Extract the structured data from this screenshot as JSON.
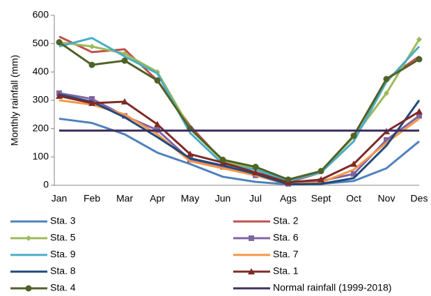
{
  "chart_data": {
    "type": "line",
    "y_label": "Monthly rainfall (mm)",
    "categories": [
      "Jan",
      "Feb",
      "Mar",
      "Apr",
      "May",
      "Jun",
      "Jul",
      "Ags",
      "Sept",
      "Oct",
      "Nov",
      "Des"
    ],
    "ylim": [
      0,
      600
    ],
    "yticks": [
      0,
      100,
      200,
      300,
      400,
      500,
      600
    ],
    "grid": false,
    "series": [
      {
        "name": "Sta. 3",
        "color": "#4f81bd",
        "marker": "none",
        "values": [
          235,
          220,
          180,
          115,
          75,
          30,
          12,
          3,
          5,
          15,
          60,
          155
        ]
      },
      {
        "name": "Sta. 2",
        "color": "#c0504d",
        "marker": "none",
        "values": [
          525,
          470,
          480,
          370,
          210,
          85,
          55,
          10,
          45,
          175,
          375,
          455
        ]
      },
      {
        "name": "Sta. 5",
        "color": "#9bbb59",
        "marker": "diamond",
        "values": [
          505,
          490,
          465,
          400,
          200,
          85,
          60,
          20,
          50,
          170,
          325,
          515
        ]
      },
      {
        "name": "Sta. 6",
        "color": "#8064a2",
        "marker": "square",
        "values": [
          325,
          305,
          245,
          195,
          90,
          65,
          35,
          5,
          15,
          40,
          160,
          245
        ]
      },
      {
        "name": "Sta. 9",
        "color": "#4bacc6",
        "marker": "none",
        "values": [
          490,
          520,
          455,
          395,
          185,
          75,
          55,
          15,
          45,
          155,
          365,
          490
        ]
      },
      {
        "name": "Sta. 7",
        "color": "#f79646",
        "marker": "none",
        "values": [
          300,
          285,
          250,
          180,
          85,
          60,
          35,
          3,
          10,
          55,
          150,
          235
        ]
      },
      {
        "name": "Sta. 8",
        "color": "#1f497d",
        "marker": "none",
        "values": [
          320,
          295,
          240,
          170,
          95,
          70,
          40,
          3,
          5,
          25,
          140,
          300
        ]
      },
      {
        "name": "Sta. 1",
        "color": "#7f2a25",
        "marker": "triangle",
        "values": [
          315,
          290,
          295,
          215,
          110,
          80,
          45,
          10,
          20,
          75,
          190,
          260
        ]
      },
      {
        "name": "Sta. 4",
        "color": "#4f6228",
        "marker": "circle",
        "values": [
          505,
          425,
          440,
          370,
          200,
          90,
          65,
          20,
          50,
          175,
          375,
          445
        ]
      },
      {
        "name": "Normal rainfall (1999-2018)",
        "color": "#403160",
        "marker": "none",
        "values": [
          193,
          193,
          193,
          193,
          193,
          193,
          193,
          193,
          193,
          193,
          193,
          193
        ]
      }
    ]
  }
}
